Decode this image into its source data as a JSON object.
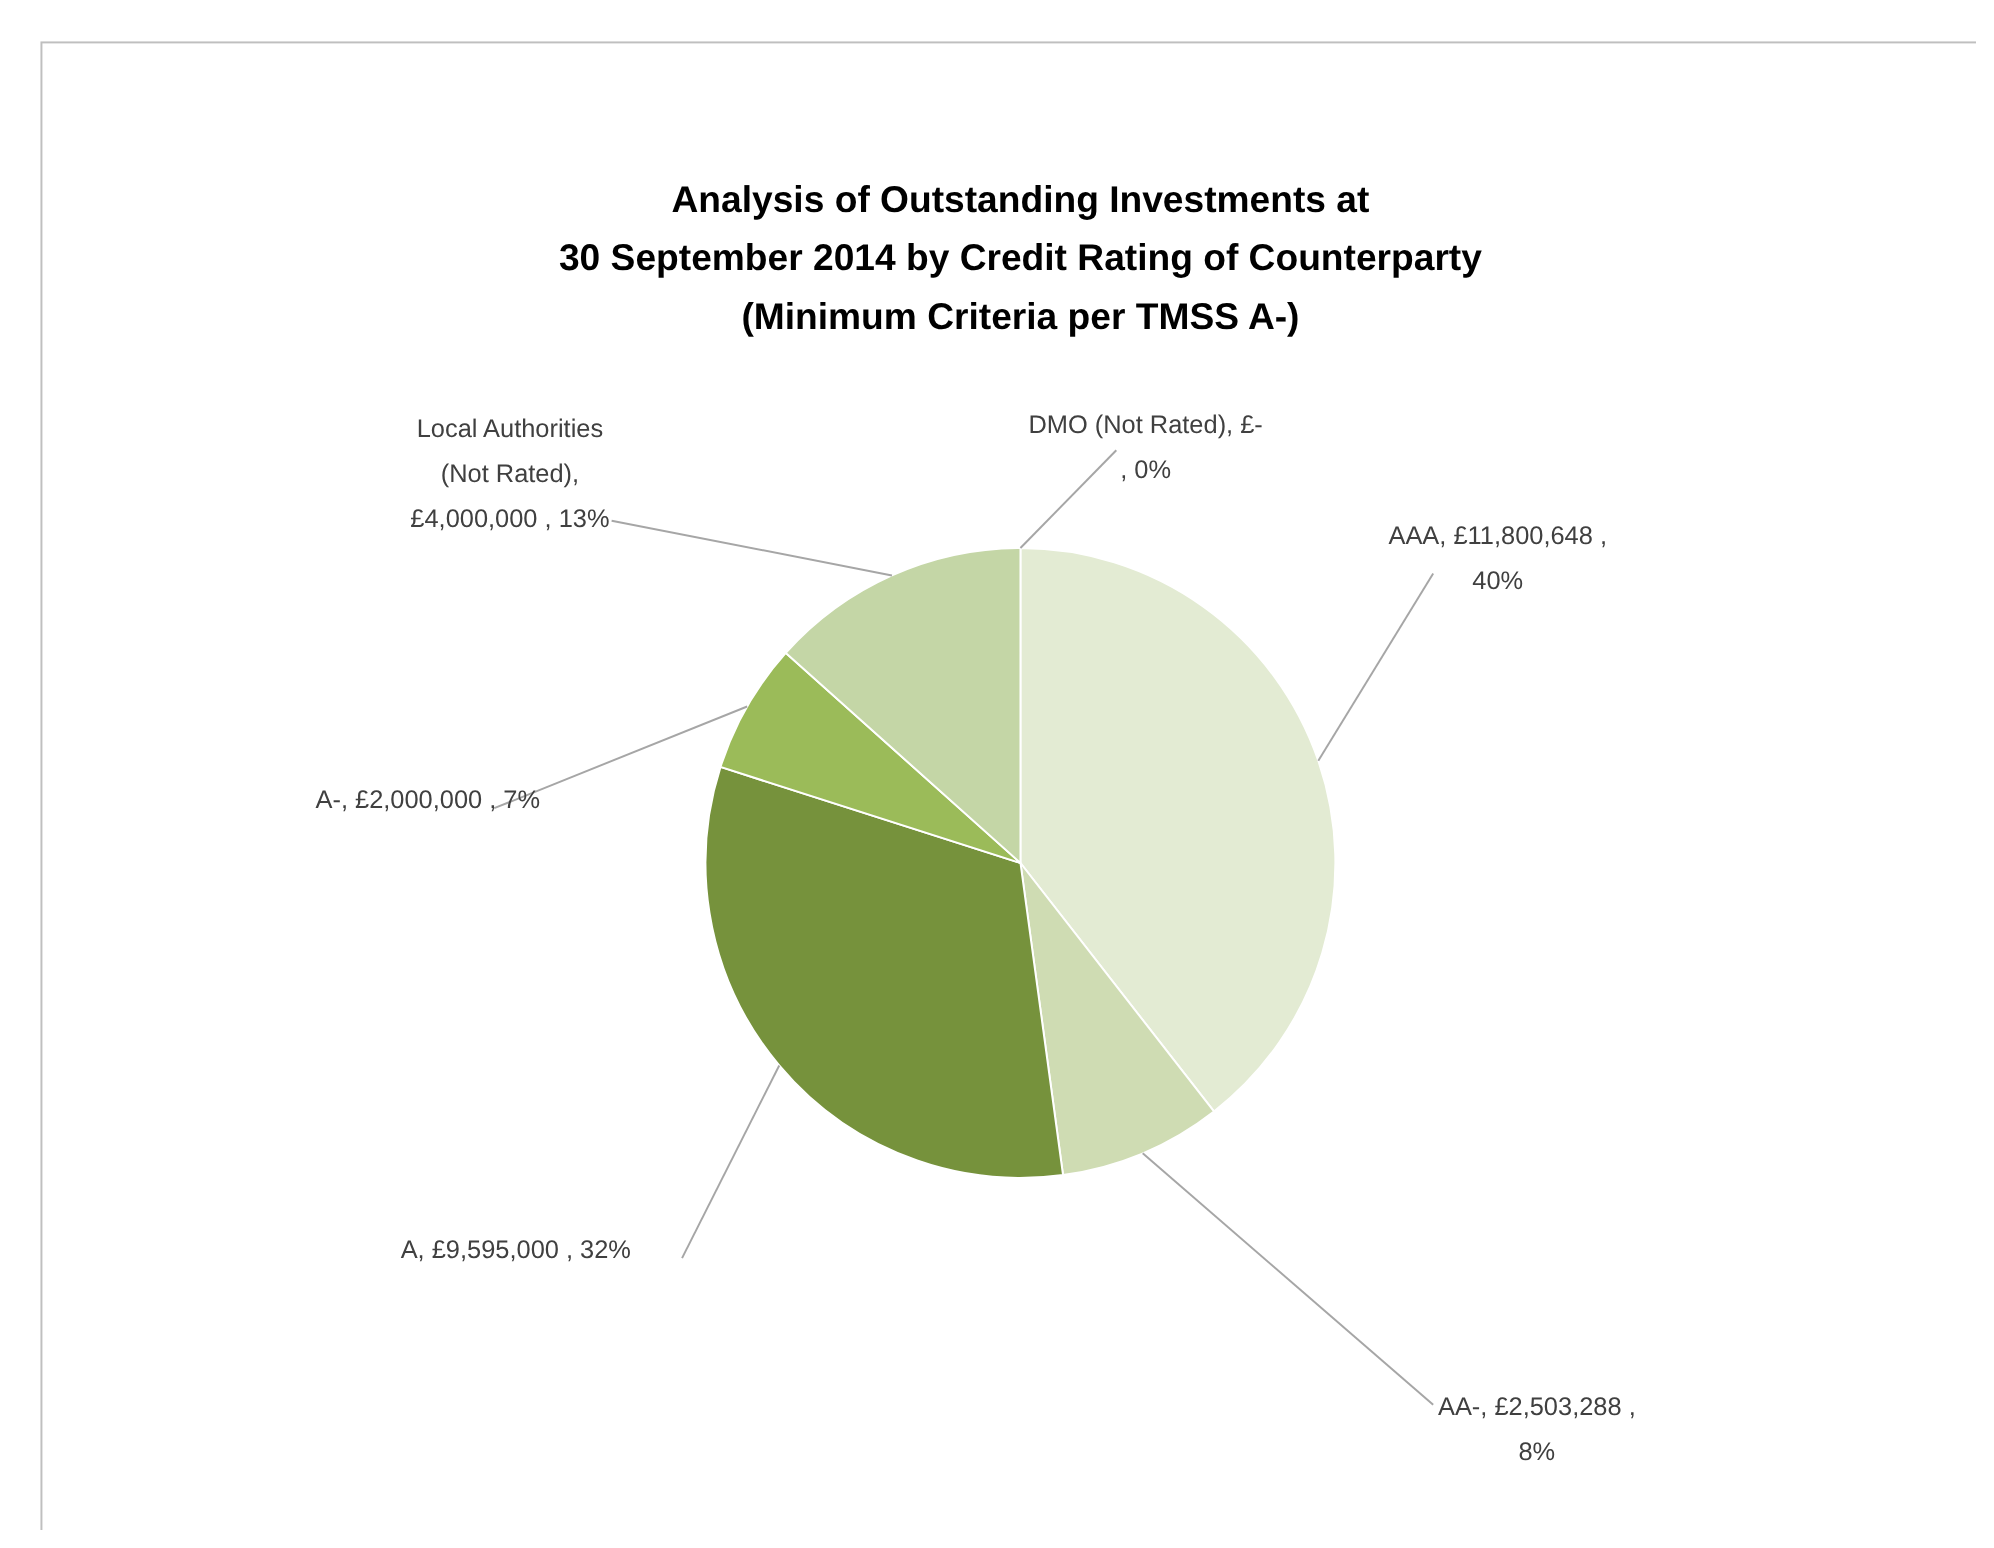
{
  "chart_data": {
    "type": "pie",
    "title": "Analysis of Outstanding Investments at\n30 September 2014 by Credit Rating of Counterparty\n(Minimum Criteria per TMSS A-)",
    "categories": [
      "DMO (Not Rated)",
      "AAA",
      "AA-",
      "A",
      "A-",
      "Local Authorities (Not Rated)"
    ],
    "values": [
      0,
      11800648,
      2503288,
      9595000,
      2000000,
      4000000
    ],
    "value_labels": [
      ", £- , 0%",
      ", £11,800,648 , 40%",
      ", £2,503,288 , 8%",
      ", £9,595,000 , 32%",
      ", £2,000,000 , 7%",
      ", £4,000,000 , 13%"
    ],
    "colors": [
      "#ebf1de",
      "#e3ebd3",
      "#cfdcb3",
      "#76923c",
      "#9bbb59",
      "#c4d6a6"
    ]
  }
}
